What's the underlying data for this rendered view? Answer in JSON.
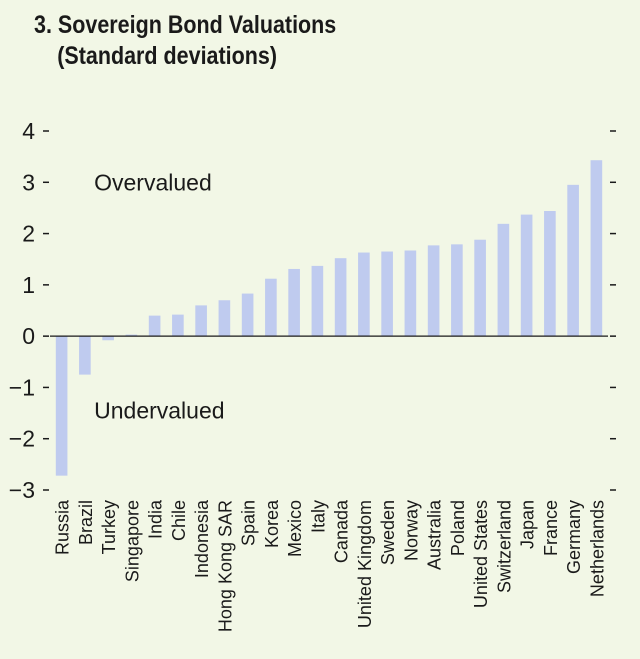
{
  "chart_data": {
    "type": "bar",
    "title": "3. Sovereign Bond Valuations",
    "subtitle": "(Standard deviations)",
    "xlabel": "",
    "ylabel": "",
    "ylim": [
      -3,
      4
    ],
    "yticks": [
      4,
      3,
      2,
      1,
      0,
      -1,
      -2,
      -3
    ],
    "ytick_labels": [
      "4",
      "3",
      "2",
      "1",
      "0",
      "−1",
      "−2",
      "−3"
    ],
    "grid": false,
    "bar_color": "#bfcbef",
    "categories": [
      "Russia",
      "Brazil",
      "Turkey",
      "Singapore",
      "India",
      "Chile",
      "Indonesia",
      "Hong Kong SAR",
      "Spain",
      "Korea",
      "Mexico",
      "Italy",
      "Canada",
      "United Kingdom",
      "Sweden",
      "Norway",
      "Australia",
      "Poland",
      "United States",
      "Switzerland",
      "Japan",
      "France",
      "Germany",
      "Netherlands"
    ],
    "values": [
      -2.72,
      -0.75,
      -0.08,
      0.03,
      0.4,
      0.42,
      0.6,
      0.7,
      0.83,
      1.12,
      1.31,
      1.37,
      1.52,
      1.63,
      1.65,
      1.67,
      1.77,
      1.79,
      1.88,
      2.19,
      2.37,
      2.44,
      2.95,
      3.43
    ],
    "annotations": [
      {
        "text": "Overvalued",
        "x": "Turkey",
        "y": 3.0
      },
      {
        "text": "Undervalued",
        "x": "Turkey",
        "y": -1.45
      }
    ]
  }
}
